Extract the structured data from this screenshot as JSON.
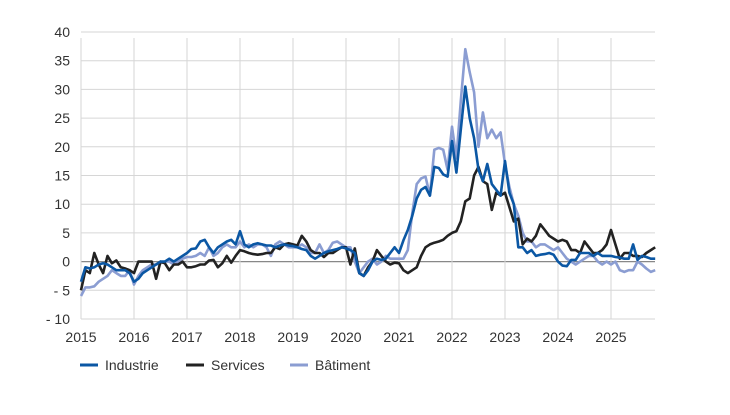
{
  "chart_data": {
    "type": "line",
    "title": "",
    "xlabel": "",
    "ylabel": "",
    "ylim": [
      -10,
      40
    ],
    "yticks": [
      40,
      35,
      30,
      25,
      20,
      15,
      10,
      5,
      0,
      -5,
      -10
    ],
    "ytick_labels": [
      "40",
      "35",
      "30",
      "25",
      "20",
      "15",
      "10",
      "5",
      "0",
      "- 5",
      "- 10"
    ],
    "xticks": [
      "2015",
      "2016",
      "2017",
      "2018",
      "2019",
      "2020",
      "2021",
      "2022",
      "2023",
      "2024",
      "2025"
    ],
    "x_start": "2015-01",
    "x_end": "2025-11",
    "frequency": "monthly",
    "grid": true,
    "legend_position": "bottom",
    "series": [
      {
        "name": "Industrie",
        "color": "#0b57a4",
        "values": [
          -3.5,
          -1,
          -1.2,
          -1,
          -0.5,
          -0.3,
          -0.5,
          -1,
          -1.5,
          -1.5,
          -1.5,
          -2,
          -3.5,
          -3,
          -2,
          -1.5,
          -1,
          -0.5,
          0,
          0,
          0.5,
          0,
          0.5,
          1,
          1.5,
          2.2,
          2.3,
          3.5,
          3.8,
          2.5,
          1.5,
          2.5,
          3,
          3.5,
          3.8,
          3,
          5.3,
          3,
          2.5,
          3,
          3.2,
          3,
          2.8,
          2.8,
          2.5,
          2.8,
          3,
          2.8,
          2.7,
          2.5,
          2.2,
          2,
          1,
          0.5,
          1,
          1.5,
          1.8,
          2,
          2.2,
          2.5,
          2.3,
          2,
          1.5,
          -2,
          -2.5,
          -1.5,
          0,
          0.5,
          0.3,
          0.5,
          1.5,
          2.5,
          1.5,
          3.7,
          5.5,
          8,
          11,
          12.5,
          13,
          11.5,
          16.5,
          16.3,
          15.2,
          14.8,
          21,
          15.5,
          23,
          30.5,
          25,
          21.5,
          16,
          14,
          17,
          13.5,
          12.5,
          11.5,
          17.5,
          12,
          10,
          2.5,
          2.5,
          1.5,
          2,
          1,
          1.2,
          1.3,
          1.5,
          1.2,
          0,
          -0.7,
          -0.8,
          0.3,
          0.3,
          1.5,
          1.5,
          1.5,
          1,
          1.5,
          1,
          1,
          1,
          0.8,
          0.7,
          0.5,
          0.5,
          3,
          0.3,
          1,
          0.8,
          0.5,
          0.5
        ]
      },
      {
        "name": "Services",
        "color": "#222222",
        "values": [
          -5,
          -1.5,
          -2,
          1.5,
          -0.5,
          -2,
          1,
          -0.3,
          0.2,
          -1,
          -1.2,
          -1.5,
          -2,
          0,
          0,
          0,
          0,
          -3,
          0,
          -0.3,
          -1.5,
          -0.5,
          -0.5,
          0,
          -1,
          -1,
          -0.8,
          -0.5,
          -0.5,
          0.2,
          0.3,
          -1,
          -0.3,
          1,
          -0.2,
          1,
          2,
          1.8,
          1.5,
          1.3,
          1.2,
          1.3,
          1.5,
          1.5,
          2.5,
          2.2,
          3,
          3.2,
          3,
          2.8,
          4.5,
          3.5,
          2,
          1.5,
          1.5,
          0.8,
          1.5,
          1.5,
          2,
          2.5,
          2.5,
          -0.5,
          2.3,
          -2,
          -2.5,
          -1,
          0,
          2,
          1,
          0,
          -0.5,
          -0.2,
          -0.3,
          -1.5,
          -2,
          -1.5,
          -1,
          1,
          2.5,
          3,
          3.3,
          3.5,
          3.8,
          4.5,
          5,
          5.3,
          7,
          10.5,
          11,
          15,
          16.5,
          14,
          13.5,
          9,
          12,
          11.5,
          12,
          9.5,
          7,
          7.5,
          3,
          4,
          3.5,
          4.5,
          6.5,
          5.5,
          4.5,
          4,
          3.5,
          3.8,
          3.5,
          2,
          2,
          1.5,
          3.5,
          2.5,
          1.5,
          1.5,
          2,
          3,
          5.5,
          3,
          0.5,
          1.5,
          1.5,
          1,
          1,
          0.8,
          1.5,
          2,
          2.5
        ]
      },
      {
        "name": "Bâtiment",
        "color": "#8b9dd2",
        "values": [
          -6,
          -4.5,
          -4.5,
          -4.3,
          -3.5,
          -3,
          -2.5,
          -1.5,
          -2,
          -2.5,
          -2.5,
          -1.5,
          -4,
          -2.5,
          -1.5,
          -1,
          -0.5,
          -0.5,
          -0.3,
          0,
          0,
          -0.5,
          0,
          0.5,
          0.8,
          0.8,
          1,
          1.5,
          1,
          2.5,
          1,
          1.5,
          2.5,
          3,
          2.5,
          2.5,
          3.5,
          2.5,
          3,
          2.5,
          3,
          3,
          2.5,
          1,
          3,
          3.5,
          3,
          2.5,
          2.5,
          2.5,
          3,
          2.5,
          1.5,
          1.5,
          3,
          1.5,
          2,
          3.3,
          3.5,
          3,
          2.5,
          2.5,
          0,
          -2,
          -1,
          0,
          0.5,
          -0.5,
          0,
          1,
          0.5,
          0.5,
          0.5,
          0.5,
          2,
          8.5,
          13.5,
          14.5,
          14.8,
          11.5,
          19.5,
          19.8,
          19.5,
          16,
          23.5,
          18,
          28,
          37,
          33,
          29.5,
          20,
          26,
          21.5,
          23,
          21.5,
          22.5,
          17,
          13,
          10,
          8,
          5,
          3.5,
          3.5,
          2.5,
          3,
          3,
          2.5,
          2,
          2.5,
          1.5,
          0.5,
          0,
          -0.5,
          0,
          0.5,
          1,
          1,
          0,
          -0.5,
          0,
          -0.5,
          0,
          -1.5,
          -1.8,
          -1.5,
          -1.5,
          0,
          -0.5,
          -1.2,
          -1.8,
          -1.5
        ]
      }
    ]
  }
}
